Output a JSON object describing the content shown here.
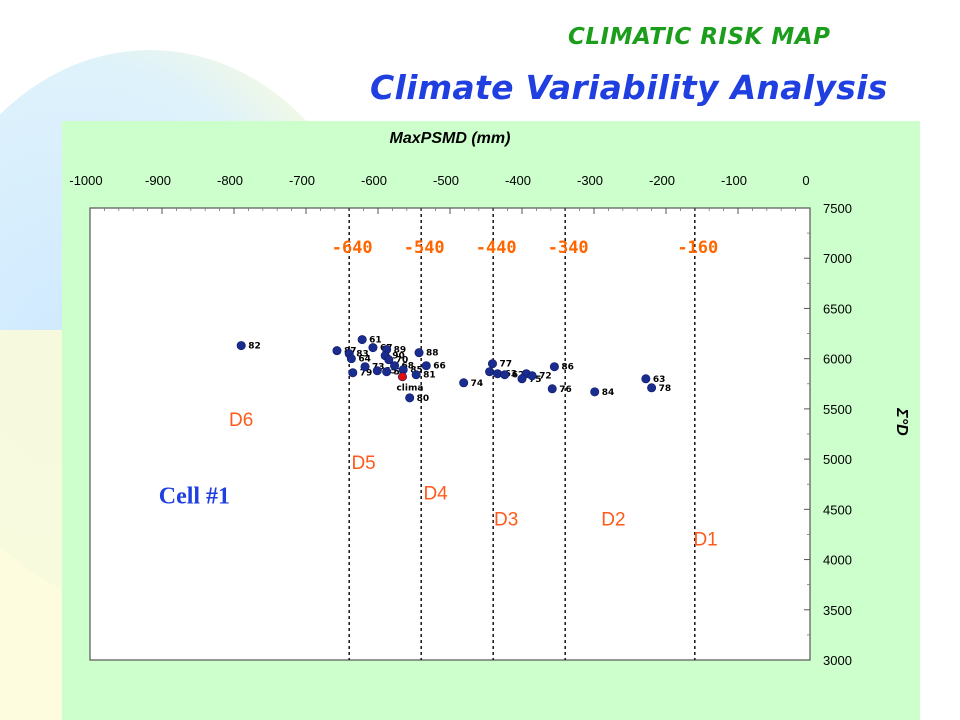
{
  "slide": {
    "kicker": "CLIMATIC RISK MAP",
    "heading": "Climate Variability Analysis",
    "colors": {
      "kicker": "#1c9e1c",
      "heading": "#1f3fe0",
      "panel": "#ccffcc",
      "threshold": "#ff6600",
      "zone": "#ff5a1a",
      "point": "#1a2d8f",
      "highlight": "#e01010"
    }
  },
  "chart_data": {
    "type": "scatter",
    "title": "",
    "xlabel": "MaxPSMD (mm)",
    "ylabel": "Σ°D",
    "xlim": [
      -1000,
      0
    ],
    "ylim": [
      3000,
      7500
    ],
    "x_ticks": [
      -1000,
      -900,
      -800,
      -700,
      -600,
      -500,
      -400,
      -300,
      -200,
      -100,
      0
    ],
    "y_ticks": [
      3000,
      3500,
      4000,
      4500,
      5000,
      5500,
      6000,
      6500,
      7000,
      7500
    ],
    "x_axis_position": "top",
    "y_axis_position": "right",
    "grid": false,
    "thresholds": [
      {
        "x": -640,
        "label": "-640"
      },
      {
        "x": -540,
        "label": "-540"
      },
      {
        "x": -440,
        "label": "-440"
      },
      {
        "x": -340,
        "label": "-340"
      },
      {
        "x": -160,
        "label": "-160"
      }
    ],
    "zones": [
      {
        "label": "D6",
        "x": -790,
        "y": 5330
      },
      {
        "label": "D5",
        "x": -620,
        "y": 4900
      },
      {
        "label": "D4",
        "x": -520,
        "y": 4600
      },
      {
        "label": "D3",
        "x": -422,
        "y": 4340
      },
      {
        "label": "D2",
        "x": -273,
        "y": 4340
      },
      {
        "label": "D1",
        "x": -145,
        "y": 4140
      }
    ],
    "annotation": "Cell #1",
    "points": [
      {
        "label": "82",
        "x": -790,
        "y": 6130
      },
      {
        "label": "87",
        "x": -657,
        "y": 6080
      },
      {
        "label": "83",
        "x": -640,
        "y": 6050
      },
      {
        "label": "61",
        "x": -622,
        "y": 6190
      },
      {
        "label": "67",
        "x": -607,
        "y": 6110
      },
      {
        "label": "64",
        "x": -637,
        "y": 6000
      },
      {
        "label": "79",
        "x": -635,
        "y": 5860
      },
      {
        "label": "73",
        "x": -618,
        "y": 5920
      },
      {
        "label": "65",
        "x": -601,
        "y": 5880
      },
      {
        "label": "89",
        "x": -588,
        "y": 6090
      },
      {
        "label": "90",
        "x": -590,
        "y": 6030
      },
      {
        "label": "70",
        "x": -585,
        "y": 5990
      },
      {
        "label": "57",
        "x": -588,
        "y": 5870
      },
      {
        "label": "68",
        "x": -577,
        "y": 5930
      },
      {
        "label": "85",
        "x": -565,
        "y": 5890
      },
      {
        "label": "clima",
        "x": -566,
        "y": 5820,
        "highlight": true
      },
      {
        "label": "88",
        "x": -543,
        "y": 6060
      },
      {
        "label": "66",
        "x": -533,
        "y": 5930
      },
      {
        "label": "81",
        "x": -547,
        "y": 5840
      },
      {
        "label": "80",
        "x": -556,
        "y": 5610
      },
      {
        "label": "74",
        "x": -481,
        "y": 5760
      },
      {
        "label": "77",
        "x": -441,
        "y": 5950
      },
      {
        "label": "63",
        "x": -434,
        "y": 5850
      },
      {
        "label": "62",
        "x": -424,
        "y": 5840
      },
      {
        "label": "",
        "x": -445,
        "y": 5870
      },
      {
        "label": "",
        "x": -394,
        "y": 5850
      },
      {
        "label": "75",
        "x": -400,
        "y": 5800
      },
      {
        "label": "72",
        "x": -386,
        "y": 5830
      },
      {
        "label": "86",
        "x": -355,
        "y": 5920
      },
      {
        "label": "76",
        "x": -358,
        "y": 5700
      },
      {
        "label": "84",
        "x": -299,
        "y": 5670
      },
      {
        "label": "63",
        "x": -228,
        "y": 5800
      },
      {
        "label": "78",
        "x": -220,
        "y": 5710
      }
    ]
  }
}
